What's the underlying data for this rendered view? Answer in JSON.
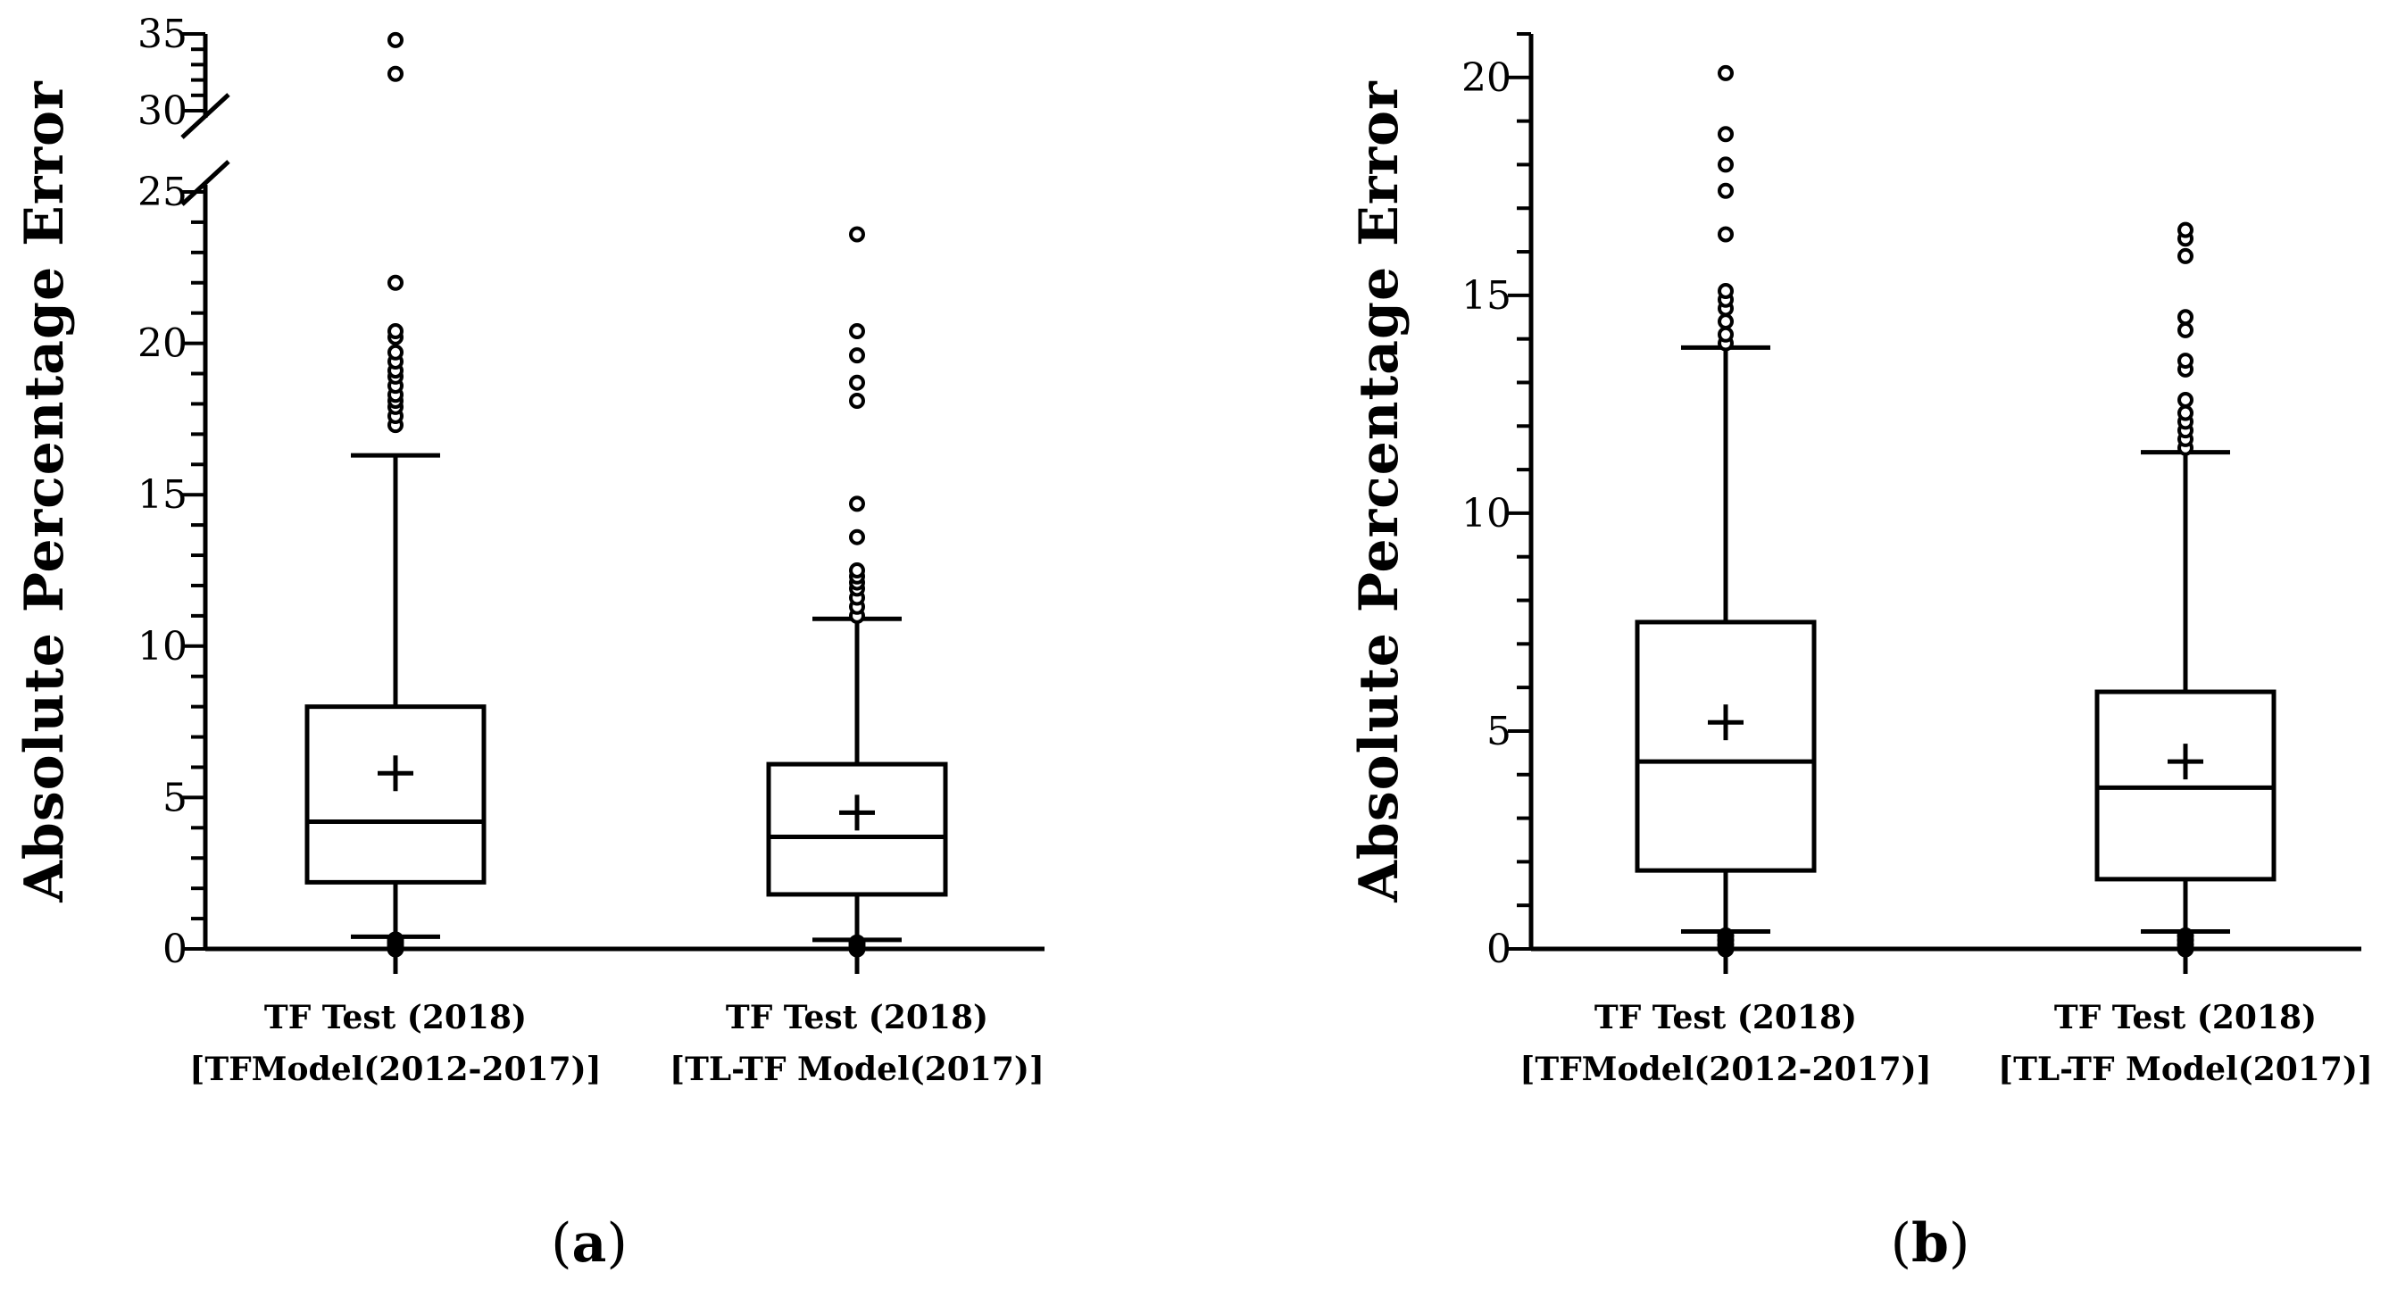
{
  "chart_data": [
    {
      "type": "box",
      "panel_label": "a",
      "ylabel": "Absolute Percentage Error",
      "ylim": [
        0,
        35
      ],
      "axis_break": [
        25,
        30
      ],
      "yticks": [
        0,
        5,
        10,
        15,
        20,
        25,
        30,
        35
      ],
      "categories": [
        {
          "line1": "TF Test (2018)",
          "line2": "[TFModel(2012-2017)]"
        },
        {
          "line1": "TF Test (2018)",
          "line2": "[TL-TF Model(2017)]"
        }
      ],
      "boxes": [
        {
          "whisker_low": 0.4,
          "q1": 2.2,
          "median": 4.2,
          "q3": 8.0,
          "whisker_high": 16.3,
          "mean": 5.8,
          "outliers_low": [
            0.0,
            0.1,
            0.2,
            0.3
          ],
          "outliers_high": [
            17.3,
            17.6,
            17.9,
            18.1,
            18.3,
            18.6,
            18.9,
            19.1,
            19.4,
            19.7,
            20.2,
            20.4,
            22.0,
            32.4,
            34.6
          ]
        },
        {
          "whisker_low": 0.3,
          "q1": 1.8,
          "median": 3.7,
          "q3": 6.1,
          "whisker_high": 10.9,
          "mean": 4.5,
          "outliers_low": [
            0.0,
            0.1,
            0.2
          ],
          "outliers_high": [
            11.0,
            11.3,
            11.6,
            11.9,
            12.1,
            12.3,
            12.5,
            13.6,
            14.7,
            18.1,
            18.7,
            19.6,
            20.4,
            23.6
          ]
        }
      ]
    },
    {
      "type": "box",
      "panel_label": "b",
      "ylabel": "Absolute Percentage Error",
      "ylim": [
        0,
        21
      ],
      "yticks": [
        0,
        5,
        10,
        15,
        20
      ],
      "categories": [
        {
          "line1": "TF Test (2018)",
          "line2": "[TFModel(2012-2017)]"
        },
        {
          "line1": "TF Test (2018)",
          "line2": "[TL-TF Model(2017)]"
        }
      ],
      "boxes": [
        {
          "whisker_low": 0.4,
          "q1": 1.8,
          "median": 4.3,
          "q3": 7.5,
          "whisker_high": 13.8,
          "mean": 5.2,
          "outliers_low": [
            0.0,
            0.1,
            0.2,
            0.3
          ],
          "outliers_high": [
            13.9,
            14.1,
            14.4,
            14.7,
            14.9,
            15.1,
            16.4,
            17.4,
            18.0,
            18.7,
            20.1
          ]
        },
        {
          "whisker_low": 0.4,
          "q1": 1.6,
          "median": 3.7,
          "q3": 5.9,
          "whisker_high": 11.4,
          "mean": 4.3,
          "outliers_low": [
            0.0,
            0.1,
            0.2,
            0.3
          ],
          "outliers_high": [
            11.5,
            11.7,
            11.9,
            12.1,
            12.3,
            12.6,
            13.3,
            13.5,
            14.2,
            14.5,
            15.9,
            16.3,
            16.5
          ]
        }
      ]
    }
  ]
}
